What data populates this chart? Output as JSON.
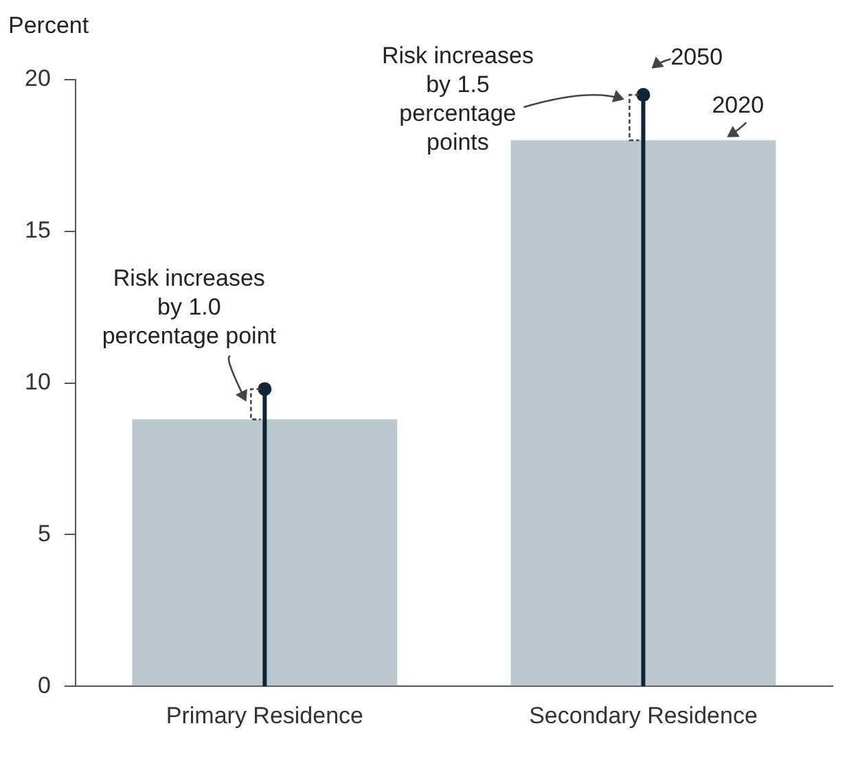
{
  "chart_data": {
    "type": "bar",
    "ylabel": "Percent",
    "categories": [
      "Primary Residence",
      "Secondary Residence"
    ],
    "series": [
      {
        "name": "2020",
        "color": "#bcc8cf",
        "values": [
          8.8,
          18.0
        ]
      },
      {
        "name": "2050",
        "type": "lollipop",
        "color": "#0f2538",
        "values": [
          9.8,
          19.5
        ]
      }
    ],
    "ylim": [
      0,
      20
    ],
    "yticks": [
      0,
      5,
      10,
      15,
      20
    ],
    "grid": false,
    "legend": false,
    "annotations": [
      "Risk increases by 1.0 percentage point",
      "Risk increases by 1.5 percentage points"
    ]
  }
}
